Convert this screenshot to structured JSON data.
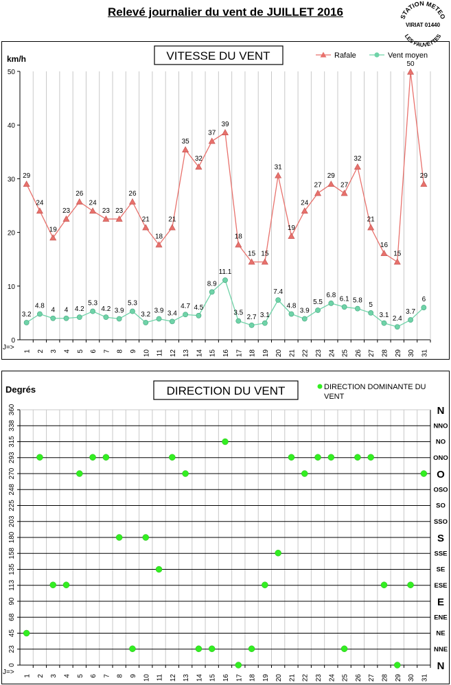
{
  "page_title": "Relevé journalier du vent de JUILLET 2016",
  "stamp": {
    "line1": "STATION METEO",
    "line2": "VIRIAT 01440",
    "line3": "LES FAUVETTES"
  },
  "chart_data": [
    {
      "type": "line",
      "title": "VITESSE DU VENT",
      "ylabel": "km/h",
      "xlabel": "J=>",
      "ylim": [
        0,
        50
      ],
      "yticks": [
        0,
        10,
        20,
        30,
        40,
        50
      ],
      "categories": [
        1,
        2,
        3,
        4,
        5,
        6,
        7,
        8,
        9,
        10,
        11,
        12,
        13,
        14,
        15,
        16,
        17,
        18,
        19,
        20,
        21,
        22,
        23,
        24,
        25,
        26,
        27,
        28,
        29,
        30,
        31
      ],
      "legend_position": "top-right",
      "series": [
        {
          "name": "Rafale",
          "color": "#e8716c",
          "marker": "triangle",
          "values": [
            29,
            24,
            19,
            22.5,
            25.7,
            24,
            22.5,
            22.5,
            25.7,
            20.9,
            17.7,
            20.9,
            35.4,
            32.2,
            37,
            38.6,
            17.7,
            14.5,
            14.5,
            30.6,
            19.3,
            24,
            27.3,
            29,
            27.3,
            32.2,
            20.9,
            16.1,
            14.5,
            49.9,
            29
          ],
          "labels": [
            "29",
            "24",
            "19",
            "23",
            "26",
            "24",
            "23",
            "23",
            "26",
            "21",
            "18",
            "21",
            "35",
            "32",
            "37",
            "39",
            "18",
            "15",
            "15",
            "31",
            "19",
            "24",
            "27",
            "29",
            "27",
            "32",
            "21",
            "16",
            "15",
            "50",
            "29"
          ]
        },
        {
          "name": "Vent moyen",
          "color": "#6fd3a8",
          "marker": "circle",
          "values": [
            3.2,
            4.8,
            4,
            4,
            4.2,
            5.3,
            4.2,
            3.9,
            5.3,
            3.2,
            3.9,
            3.4,
            4.7,
            4.5,
            8.9,
            11.1,
            3.5,
            2.7,
            3.1,
            7.4,
            4.8,
            3.9,
            5.5,
            6.8,
            6.1,
            5.8,
            5,
            3.1,
            2.4,
            3.7,
            6
          ],
          "labels": [
            "3.2",
            "4.8",
            "4",
            "4",
            "4.2",
            "5.3",
            "4.2",
            "3.9",
            "5.3",
            "3.2",
            "3.9",
            "3.4",
            "4.7",
            "4.5",
            "8.9",
            "11.1",
            "3.5",
            "2.7",
            "3.1",
            "7.4",
            "4.8",
            "3.9",
            "5.5",
            "6.8",
            "6.1",
            "5.8",
            "5",
            "3.1",
            "2.4",
            "3.7",
            "6"
          ]
        }
      ]
    },
    {
      "type": "scatter",
      "title": "DIRECTION DU VENT",
      "ylabel": "Degrés",
      "xlabel": "J=>",
      "ylim": [
        0,
        360
      ],
      "yticks": [
        0,
        23,
        45,
        68,
        90,
        113,
        135,
        158,
        180,
        203,
        225,
        248,
        270,
        293,
        315,
        338,
        360
      ],
      "direction_labels": [
        "N",
        "NNE",
        "NE",
        "ENE",
        "E",
        "ESE",
        "SE",
        "SSE",
        "S",
        "SSO",
        "SO",
        "OSO",
        "O",
        "ONO",
        "NO",
        "NNO",
        "N"
      ],
      "categories": [
        1,
        2,
        3,
        4,
        5,
        6,
        7,
        8,
        9,
        10,
        11,
        12,
        13,
        14,
        15,
        16,
        17,
        18,
        19,
        20,
        21,
        22,
        23,
        24,
        25,
        26,
        27,
        28,
        29,
        30,
        31
      ],
      "legend_position": "top-right",
      "series": [
        {
          "name": "DIRECTION DOMINANTE DU VENT",
          "color": "#33ee22",
          "values": [
            45,
            293,
            113,
            113,
            270,
            293,
            293,
            180,
            23,
            180,
            135,
            293,
            270,
            23,
            23,
            315,
            0,
            23,
            113,
            158,
            293,
            270,
            293,
            293,
            23,
            293,
            293,
            113,
            0,
            113,
            270
          ]
        }
      ]
    }
  ]
}
